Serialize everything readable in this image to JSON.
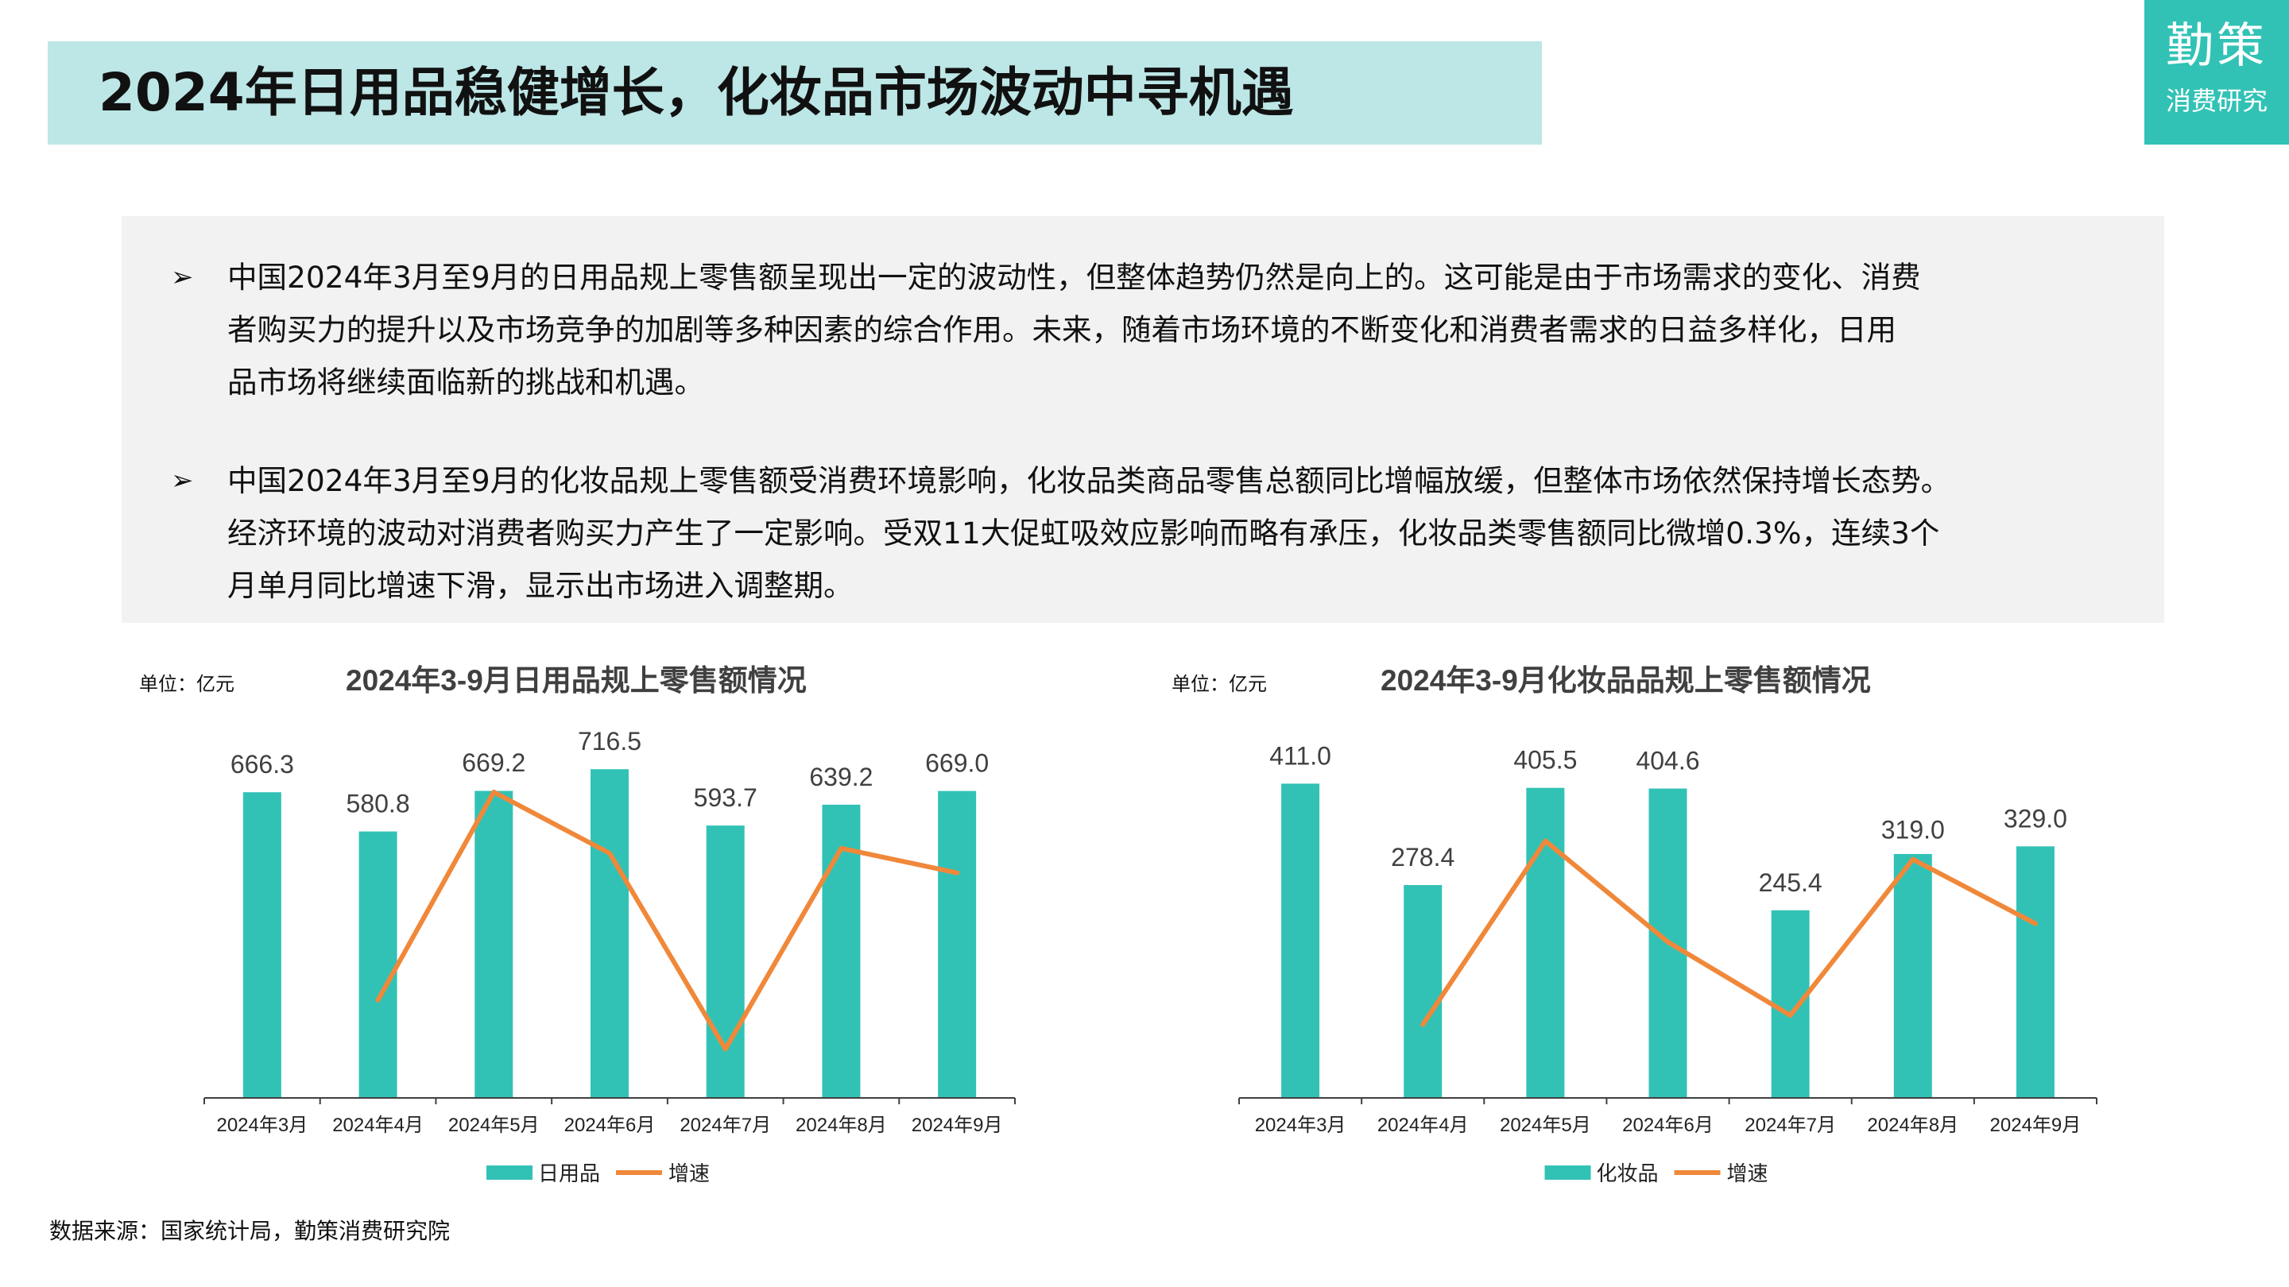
{
  "header": {
    "title": "2024年日用品稳健增长，化妆品市场波动中寻机遇",
    "logo_line1": "勤策",
    "logo_line2": "消费研究"
  },
  "summary": {
    "bullet": "➢",
    "paragraphs": [
      [
        "中国2024年3月至9月的日用品规上零售额呈现出一定的波动性，但整体趋势仍然是向上的。这可能是由于市场需求的变化、消费",
        "者购买力的提升以及市场竞争的加剧等多种因素的综合作用。未来，随着市场环境的不断变化和消费者需求的日益多样化，日用",
        "品市场将继续面临新的挑战和机遇。"
      ],
      [
        "中国2024年3月至9月的化妆品规上零售额受消费环境影响，化妆品类商品零售总额同比增幅放缓，但整体市场依然保持增长态势。",
        "经济环境的波动对消费者购买力产生了一定影响。受双11大促虹吸效应影响而略有承压，化妆品类零售额同比微增0.3%，连续3个",
        "月单月同比增速下滑，显示出市场进入调整期。"
      ]
    ]
  },
  "chart_data": [
    {
      "type": "bar",
      "title": "2024年3-9月日用品规上零售额情况",
      "unit": "单位：亿元",
      "categories": [
        "2024年3月",
        "2024年4月",
        "2024年5月",
        "2024年6月",
        "2024年7月",
        "2024年8月",
        "2024年9月"
      ],
      "series": [
        {
          "name": "日用品",
          "type": "bar",
          "color": "#32c2b5",
          "values": [
            666.3,
            580.8,
            669.2,
            716.5,
            593.7,
            639.2,
            669.0
          ]
        },
        {
          "name": "增速",
          "type": "line",
          "color": "#f0883a",
          "values": [
            null,
            -1.0,
            7.5,
            5.0,
            -3.0,
            5.2,
            4.2
          ]
        }
      ],
      "bar_ylim": [
        0,
        800
      ],
      "line_ylim": [
        -5,
        10
      ],
      "legend_position": "bottom",
      "grid": false
    },
    {
      "type": "bar",
      "title": "2024年3-9月化妆品品规上零售额情况",
      "unit": "单位：亿元",
      "categories": [
        "2024年3月",
        "2024年4月",
        "2024年5月",
        "2024年6月",
        "2024年7月",
        "2024年8月",
        "2024年9月"
      ],
      "series": [
        {
          "name": "化妆品",
          "type": "bar",
          "color": "#32c2b5",
          "values": [
            411.0,
            278.4,
            405.5,
            404.6,
            245.4,
            319.0,
            329.0
          ]
        },
        {
          "name": "增速",
          "type": "line",
          "color": "#f0883a",
          "values": [
            null,
            -2.0,
            18.0,
            7.0,
            -1.0,
            16.0,
            9.0
          ]
        }
      ],
      "bar_ylim": [
        0,
        480
      ],
      "line_ylim": [
        -10,
        30
      ],
      "legend_position": "bottom",
      "grid": false
    }
  ],
  "footer": {
    "source": "数据来源：国家统计局，勤策消费研究院"
  }
}
